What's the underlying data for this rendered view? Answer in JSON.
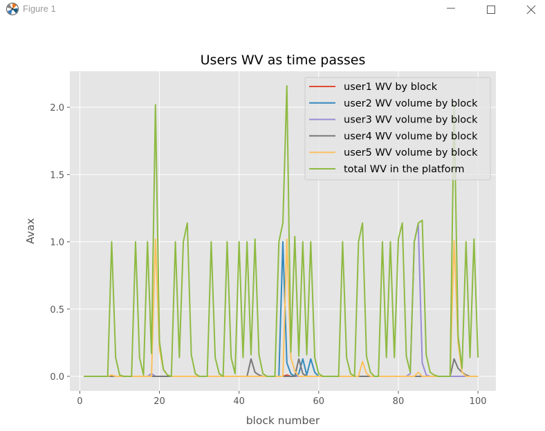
{
  "window": {
    "title": "Figure 1",
    "controls": {
      "minimize": "minimize",
      "maximize": "maximize",
      "close": "close"
    }
  },
  "chart_data": {
    "type": "line",
    "title": "Users WV as time passes",
    "xlabel": "block number",
    "ylabel": "Avax",
    "xlim": [
      -2.5,
      104.5
    ],
    "ylim": [
      -0.108,
      2.268
    ],
    "xticks": [
      0,
      20,
      40,
      60,
      80,
      100
    ],
    "yticks": [
      0.0,
      0.5,
      1.0,
      1.5,
      2.0
    ],
    "ytick_labels": [
      "0.0",
      "0.5",
      "1.0",
      "1.5",
      "2.0"
    ],
    "grid": true,
    "legend_position": "top-right",
    "x": [
      1,
      2,
      3,
      4,
      5,
      6,
      7,
      8,
      9,
      10,
      11,
      12,
      13,
      14,
      15,
      16,
      17,
      18,
      19,
      20,
      21,
      22,
      23,
      24,
      25,
      26,
      27,
      28,
      29,
      30,
      31,
      32,
      33,
      34,
      35,
      36,
      37,
      38,
      39,
      40,
      41,
      42,
      43,
      44,
      45,
      46,
      47,
      48,
      49,
      50,
      51,
      52,
      53,
      54,
      55,
      56,
      57,
      58,
      59,
      60,
      61,
      62,
      63,
      64,
      65,
      66,
      67,
      68,
      69,
      70,
      71,
      72,
      73,
      74,
      75,
      76,
      77,
      78,
      79,
      80,
      81,
      82,
      83,
      84,
      85,
      86,
      87,
      88,
      89,
      90,
      91,
      92,
      93,
      94,
      95,
      96,
      97,
      98,
      99,
      100
    ],
    "series": [
      {
        "name": "user1 WV by block",
        "color": "#E24A33",
        "values": [
          0,
          0,
          0,
          0,
          0,
          0,
          0,
          0,
          0,
          0,
          0,
          0,
          0,
          0,
          0,
          0,
          0,
          0,
          0,
          0,
          0,
          0,
          0,
          0,
          0,
          0,
          0,
          0,
          0,
          0,
          0,
          0,
          0,
          0,
          0,
          0,
          0,
          0,
          0,
          0,
          0,
          0,
          0,
          0,
          0,
          0,
          0,
          0,
          0,
          0,
          0,
          0.01,
          0,
          0,
          0,
          0,
          0,
          0,
          0,
          0,
          0,
          0,
          0,
          0,
          0,
          0,
          0,
          0,
          0,
          0,
          0,
          0,
          0,
          0,
          0,
          0,
          0,
          0,
          0,
          0,
          0,
          0,
          0,
          0,
          0,
          0,
          0,
          0,
          0,
          0,
          0,
          0,
          0,
          0,
          0,
          0,
          0,
          0,
          0,
          0
        ]
      },
      {
        "name": "user2 WV volume by block",
        "color": "#348ABD",
        "values": [
          0,
          0,
          0,
          0,
          0,
          0,
          0,
          0,
          0,
          0,
          0,
          0,
          0,
          0,
          0,
          0,
          0,
          0,
          0,
          0,
          0,
          0,
          0,
          0,
          0,
          0,
          0,
          0,
          0,
          0,
          0,
          0,
          0,
          0,
          0,
          0,
          0,
          0,
          0,
          0,
          0,
          0,
          0,
          0,
          0,
          0,
          0,
          0,
          0,
          0,
          1.0,
          0.1,
          0.02,
          0,
          0.02,
          0.13,
          0.01,
          0.13,
          0.03,
          0,
          0,
          0,
          0,
          0,
          0,
          0,
          0,
          0,
          0,
          0,
          0,
          0,
          0,
          0,
          0,
          0,
          0,
          0,
          0,
          0,
          0,
          0,
          0,
          0,
          0,
          0,
          0,
          0,
          0,
          0,
          0,
          0,
          0,
          0,
          0,
          0,
          0,
          0,
          0,
          0
        ]
      },
      {
        "name": "user3 WV volume by block",
        "color": "#988ED5",
        "values": [
          0,
          0,
          0,
          0,
          0,
          0,
          0,
          0,
          0,
          0,
          0,
          0,
          0,
          0,
          0,
          0,
          0,
          0.02,
          0,
          0,
          0,
          0,
          0,
          0,
          0,
          0,
          0,
          0,
          0,
          0,
          0,
          0,
          0,
          0,
          0,
          0,
          0,
          0,
          0,
          0,
          0,
          0,
          0,
          0,
          0,
          0,
          0,
          0,
          0,
          0,
          0,
          0,
          0,
          0,
          0,
          0,
          0,
          0,
          0,
          0,
          0,
          0,
          0,
          0,
          0,
          0,
          0,
          0,
          0,
          0,
          0,
          0,
          0,
          0,
          0,
          0,
          0,
          0,
          0,
          0,
          0,
          0,
          0.02,
          1.0,
          1.13,
          0.1,
          0.01,
          0,
          0,
          0,
          0,
          0,
          0,
          0,
          0,
          0,
          0,
          0,
          0,
          0
        ]
      },
      {
        "name": "user4 WV volume by block",
        "color": "#777777",
        "values": [
          0,
          0,
          0,
          0,
          0,
          0,
          0,
          0,
          0,
          0,
          0,
          0,
          0,
          0,
          0,
          0,
          0,
          0,
          0,
          0,
          0,
          0,
          0,
          0,
          0,
          0,
          0,
          0,
          0,
          0,
          0,
          0,
          0,
          0,
          0,
          0,
          0,
          0,
          0,
          0,
          0,
          0,
          0.13,
          0.03,
          0.01,
          0,
          0,
          0,
          0,
          0,
          0,
          0,
          0,
          0,
          0.13,
          0.02,
          0,
          0,
          0,
          0,
          0,
          0,
          0,
          0,
          0,
          0,
          0,
          0,
          0,
          0,
          0,
          0,
          0,
          0,
          0,
          0,
          0,
          0,
          0,
          0,
          0,
          0,
          0,
          0,
          0,
          0,
          0,
          0,
          0,
          0,
          0,
          0,
          0,
          0.13,
          0.06,
          0.03,
          0.01,
          0,
          0,
          0
        ]
      },
      {
        "name": "user5 WV volume by block",
        "color": "#FBC15E",
        "values": [
          0,
          0,
          0,
          0,
          0,
          0,
          0,
          0.01,
          0,
          0,
          0,
          0,
          0,
          0,
          0,
          0,
          0,
          0,
          1.02,
          0.2,
          0.05,
          0.01,
          0,
          0,
          0,
          0,
          0,
          0,
          0,
          0,
          0,
          0,
          0,
          0,
          0,
          0,
          0,
          0,
          0,
          0,
          0,
          0,
          0,
          0,
          0,
          0,
          0,
          0,
          0,
          0,
          0,
          1.02,
          0.14,
          0.04,
          0,
          0,
          0,
          0,
          0,
          0,
          0,
          0,
          0,
          0,
          0,
          0,
          0,
          0,
          0,
          0,
          0.11,
          0.02,
          0,
          0,
          0,
          0,
          0,
          0,
          0,
          0,
          0,
          0,
          0,
          0,
          0.03,
          0,
          0,
          0,
          0,
          0,
          0,
          0,
          0,
          1.01,
          0.25,
          0.03,
          0,
          0,
          0,
          0
        ]
      },
      {
        "name": "total WV in the platform",
        "color": "#8EBA42",
        "values": [
          0,
          0,
          0,
          0,
          0,
          0,
          0,
          1.0,
          0.14,
          0.01,
          0,
          0,
          0,
          1.0,
          0.14,
          0.01,
          1.0,
          0.17,
          2.02,
          0.26,
          0.05,
          0.01,
          0,
          1.0,
          0.14,
          1.0,
          1.14,
          0.16,
          0.02,
          0,
          0,
          0,
          1.0,
          0.14,
          0.02,
          0,
          1.0,
          0.14,
          0.02,
          1.0,
          0.14,
          1.0,
          0.16,
          1.02,
          0.16,
          0.02,
          0,
          0,
          0,
          1.0,
          1.14,
          2.16,
          0.18,
          1.04,
          0.15,
          1.0,
          0.16,
          1.0,
          0.14,
          0.02,
          0,
          0,
          0,
          0,
          0,
          1.0,
          0.14,
          0.02,
          0,
          1.0,
          1.14,
          0.15,
          0.03,
          0,
          0,
          1.0,
          0.14,
          1.0,
          0.14,
          1.02,
          1.14,
          0.15,
          0.03,
          1.0,
          1.14,
          1.16,
          0.16,
          0.03,
          0.01,
          0,
          0,
          0,
          0,
          2.02,
          0.3,
          0.06,
          1.0,
          0.14,
          1.02,
          0.14
        ]
      }
    ]
  }
}
